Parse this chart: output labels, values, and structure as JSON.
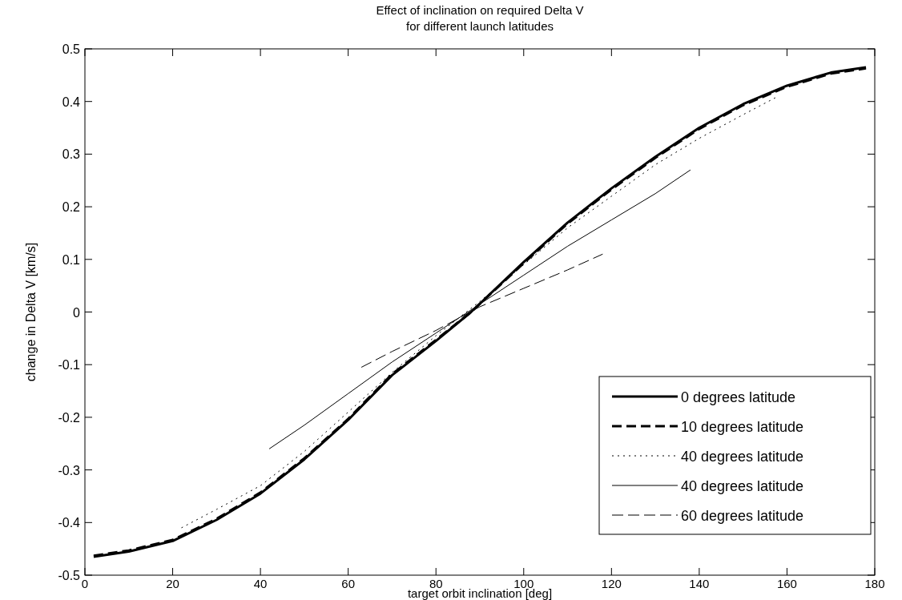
{
  "chart_data": {
    "type": "line",
    "title": "Effect of inclination on required Delta V",
    "subtitle": "for different launch latitudes",
    "xlabel": "target orbit inclination [deg]",
    "ylabel": "change in Delta V [km/s]",
    "xlim": [
      0,
      180
    ],
    "xticks": [
      0,
      20,
      40,
      60,
      80,
      100,
      120,
      140,
      160,
      180
    ],
    "ylim": [
      -0.5,
      0.5
    ],
    "yticks": [
      -0.5,
      -0.4,
      -0.3,
      -0.2,
      -0.1,
      0,
      0.1,
      0.2,
      0.3,
      0.4,
      0.5
    ],
    "grid": false,
    "legend": "bottom right",
    "marker": "none",
    "series": [
      {
        "name": "0 degrees latitude",
        "color": "#000000",
        "line_style": "solid",
        "x": [
          2,
          10,
          20,
          30,
          40,
          50,
          60,
          70,
          80,
          88,
          100,
          110,
          120,
          130,
          140,
          150,
          160,
          170,
          178
        ],
        "values": [
          -0.465,
          -0.455,
          -0.435,
          -0.395,
          -0.345,
          -0.28,
          -0.205,
          -0.12,
          -0.055,
          0,
          0.095,
          0.17,
          0.235,
          0.295,
          0.35,
          0.395,
          0.43,
          0.455,
          0.465
        ]
      },
      {
        "name": "10 degrees latitude",
        "color": "#000000",
        "line_style": "dashed",
        "x": [
          2,
          10,
          20,
          30,
          40,
          50,
          60,
          70,
          80,
          88,
          100,
          110,
          120,
          130,
          140,
          150,
          160,
          170,
          178
        ],
        "values": [
          -0.463,
          -0.453,
          -0.433,
          -0.393,
          -0.343,
          -0.278,
          -0.203,
          -0.118,
          -0.053,
          0,
          0.093,
          0.168,
          0.233,
          0.293,
          0.348,
          0.393,
          0.428,
          0.453,
          0.463
        ]
      },
      {
        "name": "40 degrees latitude",
        "color": "#000000",
        "line_style": "dotted",
        "x": [
          22,
          30,
          40,
          50,
          60,
          70,
          80,
          90,
          100,
          110,
          120,
          130,
          140,
          150,
          158
        ],
        "values": [
          -0.41,
          -0.375,
          -0.33,
          -0.265,
          -0.19,
          -0.115,
          -0.045,
          0.02,
          0.09,
          0.16,
          0.22,
          0.28,
          0.33,
          0.375,
          0.41
        ]
      },
      {
        "name": "40 degrees latitude",
        "color": "#000000",
        "line_style": "solid",
        "x": [
          42,
          50,
          60,
          70,
          80,
          90,
          100,
          110,
          120,
          130,
          138
        ],
        "values": [
          -0.26,
          -0.215,
          -0.155,
          -0.095,
          -0.04,
          0.015,
          0.07,
          0.125,
          0.175,
          0.225,
          0.27
        ]
      },
      {
        "name": "60 degrees latitude",
        "color": "#000000",
        "line_style": "dashed",
        "x": [
          63,
          70,
          80,
          90,
          100,
          110,
          118
        ],
        "values": [
          -0.105,
          -0.075,
          -0.035,
          0.01,
          0.045,
          0.08,
          0.11
        ]
      }
    ]
  }
}
